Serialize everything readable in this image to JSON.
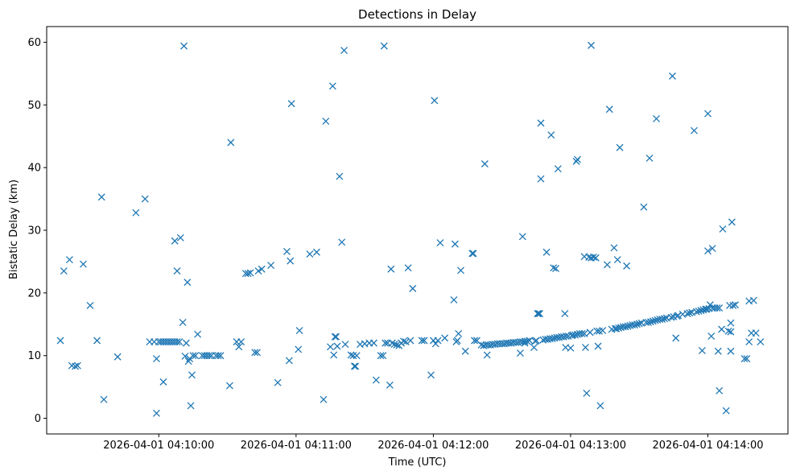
{
  "chart_data": {
    "type": "scatter",
    "title": "Detections in Delay",
    "xlabel": "Time (UTC)",
    "ylabel": "Bistatic Delay (km)",
    "marker": "x",
    "color": "#1f77b4",
    "xlim_seconds": [
      -49,
      275
    ],
    "ylim": [
      -2.5,
      62.5
    ],
    "x_ticks": [
      {
        "value": 0,
        "label": "2026-04-01 04:10:00"
      },
      {
        "value": 60,
        "label": "2026-04-01 04:11:00"
      },
      {
        "value": 120,
        "label": "2026-04-01 04:12:00"
      },
      {
        "value": 180,
        "label": "2026-04-01 04:13:00"
      },
      {
        "value": 240,
        "label": "2026-04-01 04:14:00"
      }
    ],
    "y_ticks": [
      {
        "value": 0,
        "label": "0"
      },
      {
        "value": 10,
        "label": "10"
      },
      {
        "value": 20,
        "label": "20"
      },
      {
        "value": 30,
        "label": "30"
      },
      {
        "value": 40,
        "label": "40"
      },
      {
        "value": 50,
        "label": "50"
      },
      {
        "value": 60,
        "label": "60"
      }
    ],
    "x_unit": "seconds after 2026-04-01 04:10:00 UTC",
    "series": [
      {
        "name": "detections",
        "points": [
          [
            -43,
            12.4
          ],
          [
            -41.5,
            23.5
          ],
          [
            -39,
            25.3
          ],
          [
            -38,
            8.4
          ],
          [
            -36.5,
            8.3
          ],
          [
            -35.5,
            8.4
          ],
          [
            -33,
            24.6
          ],
          [
            -30,
            18.0
          ],
          [
            -27,
            12.4
          ],
          [
            -25,
            35.3
          ],
          [
            -24,
            3.0
          ],
          [
            -18,
            9.8
          ],
          [
            -10,
            32.8
          ],
          [
            -6,
            35.0
          ],
          [
            -4,
            12.2
          ],
          [
            -2,
            12.2
          ],
          [
            -1,
            9.5
          ],
          [
            -1,
            0.8
          ],
          [
            0,
            12.2
          ],
          [
            1,
            12.2
          ],
          [
            2,
            12.2
          ],
          [
            3,
            12.2
          ],
          [
            4,
            12.2
          ],
          [
            5,
            12.2
          ],
          [
            6,
            12.2
          ],
          [
            7,
            12.2
          ],
          [
            8,
            12.2
          ],
          [
            9,
            12.2
          ],
          [
            2,
            5.8
          ],
          [
            7,
            28.3
          ],
          [
            8,
            23.5
          ],
          [
            9.5,
            28.8
          ],
          [
            10.5,
            15.3
          ],
          [
            11,
            59.4
          ],
          [
            11.5,
            9.9
          ],
          [
            12,
            12.0
          ],
          [
            12.5,
            21.7
          ],
          [
            13,
            9.1
          ],
          [
            13.5,
            9.5
          ],
          [
            14,
            2.0
          ],
          [
            14.5,
            6.9
          ],
          [
            15,
            10.0
          ],
          [
            16,
            10.0
          ],
          [
            17,
            13.4
          ],
          [
            19,
            10.0
          ],
          [
            20,
            10.0
          ],
          [
            21,
            10.0
          ],
          [
            22,
            10.0
          ],
          [
            23,
            10.0
          ],
          [
            25,
            10.0
          ],
          [
            26,
            10.0
          ],
          [
            27,
            10.0
          ],
          [
            31,
            5.2
          ],
          [
            31.5,
            44.0
          ],
          [
            34,
            12.2
          ],
          [
            35,
            11.4
          ],
          [
            36,
            12.2
          ],
          [
            38,
            23.1
          ],
          [
            39,
            23.1
          ],
          [
            40,
            23.2
          ],
          [
            42,
            10.5
          ],
          [
            43,
            10.5
          ],
          [
            43.5,
            23.5
          ],
          [
            45,
            23.8
          ],
          [
            49,
            24.4
          ],
          [
            52,
            5.7
          ],
          [
            56,
            26.6
          ],
          [
            57,
            9.2
          ],
          [
            57.5,
            25.1
          ],
          [
            58,
            50.2
          ],
          [
            61,
            11.0
          ],
          [
            61.5,
            14.0
          ],
          [
            66,
            26.2
          ],
          [
            69,
            26.5
          ],
          [
            72,
            3.0
          ],
          [
            73,
            47.4
          ],
          [
            75,
            11.4
          ],
          [
            76,
            53.0
          ],
          [
            76.5,
            10.1
          ],
          [
            77,
            13.0
          ],
          [
            77.5,
            13.0
          ],
          [
            78,
            11.5
          ],
          [
            79,
            38.6
          ],
          [
            80,
            28.1
          ],
          [
            81,
            58.7
          ],
          [
            81.5,
            11.8
          ],
          [
            84,
            10.1
          ],
          [
            85,
            10.0
          ],
          [
            85.5,
            8.3
          ],
          [
            86,
            8.3
          ],
          [
            86.5,
            10.0
          ],
          [
            88,
            11.8
          ],
          [
            90,
            11.9
          ],
          [
            92,
            12.0
          ],
          [
            94,
            12.0
          ],
          [
            95,
            6.1
          ],
          [
            97,
            10.0
          ],
          [
            98,
            10.0
          ],
          [
            98.5,
            59.4
          ],
          [
            99,
            12.0
          ],
          [
            100,
            12.0
          ],
          [
            101,
            5.3
          ],
          [
            101.5,
            23.8
          ],
          [
            102,
            12.0
          ],
          [
            103,
            11.8
          ],
          [
            104,
            11.7
          ],
          [
            105,
            11.6
          ],
          [
            106,
            12.0
          ],
          [
            107,
            12.3
          ],
          [
            108,
            12.2
          ],
          [
            109,
            24.0
          ],
          [
            110,
            12.4
          ],
          [
            111,
            20.7
          ],
          [
            115,
            12.4
          ],
          [
            116,
            12.4
          ],
          [
            120,
            12.4
          ],
          [
            121,
            11.9
          ],
          [
            122,
            12.4
          ],
          [
            119,
            6.9
          ],
          [
            120.5,
            50.7
          ],
          [
            123,
            28.0
          ],
          [
            125,
            12.8
          ],
          [
            129,
            18.9
          ],
          [
            129.5,
            27.8
          ],
          [
            130,
            12.2
          ],
          [
            130.5,
            12.4
          ],
          [
            131,
            13.5
          ],
          [
            132,
            23.6
          ],
          [
            134,
            10.7
          ],
          [
            137,
            26.3
          ],
          [
            137.5,
            26.3
          ],
          [
            138,
            12.4
          ],
          [
            139,
            12.4
          ],
          [
            141,
            11.7
          ],
          [
            142,
            11.6
          ],
          [
            142.5,
            40.6
          ],
          [
            143,
            11.7
          ],
          [
            143.5,
            10.1
          ],
          [
            144,
            11.7
          ],
          [
            145,
            11.7
          ],
          [
            146,
            11.8
          ],
          [
            147,
            11.8
          ],
          [
            148,
            11.9
          ],
          [
            149,
            11.9
          ],
          [
            150,
            11.9
          ],
          [
            151,
            11.9
          ],
          [
            152,
            12.0
          ],
          [
            153,
            12.0
          ],
          [
            154,
            12.0
          ],
          [
            155,
            12.1
          ],
          [
            156,
            12.1
          ],
          [
            157,
            12.1
          ],
          [
            158,
            12.2
          ],
          [
            159,
            12.2
          ],
          [
            160,
            12.3
          ],
          [
            161,
            12.3
          ],
          [
            162,
            12.4
          ],
          [
            158,
            10.4
          ],
          [
            159,
            29.0
          ],
          [
            160,
            12.0
          ],
          [
            164,
            11.3
          ],
          [
            164.5,
            12.3
          ],
          [
            165,
            12.4
          ],
          [
            165.5,
            16.7
          ],
          [
            166,
            16.7
          ],
          [
            166.5,
            16.7
          ],
          [
            167,
            47.1
          ],
          [
            167,
            38.2
          ],
          [
            168,
            12.5
          ],
          [
            169,
            12.6
          ],
          [
            169.5,
            26.5
          ],
          [
            170,
            12.6
          ],
          [
            171,
            12.7
          ],
          [
            171.5,
            45.2
          ],
          [
            172,
            12.7
          ],
          [
            172.5,
            24.0
          ],
          [
            173,
            12.8
          ],
          [
            173.5,
            23.9
          ],
          [
            174,
            12.9
          ],
          [
            174.5,
            39.8
          ],
          [
            175,
            12.9
          ],
          [
            176,
            13.0
          ],
          [
            177,
            13.0
          ],
          [
            177.5,
            16.7
          ],
          [
            177.8,
            11.3
          ],
          [
            178,
            13.1
          ],
          [
            179,
            13.1
          ],
          [
            180,
            11.2
          ],
          [
            180.5,
            13.2
          ],
          [
            181,
            13.3
          ],
          [
            182,
            13.3
          ],
          [
            182.5,
            41.0
          ],
          [
            183,
            41.3
          ],
          [
            183,
            13.4
          ],
          [
            184,
            13.5
          ],
          [
            185,
            13.5
          ],
          [
            186,
            25.8
          ],
          [
            186,
            13.5
          ],
          [
            186.5,
            11.3
          ],
          [
            187,
            4.0
          ],
          [
            188,
            25.7
          ],
          [
            188.5,
            13.7
          ],
          [
            189,
            59.5
          ],
          [
            189,
            25.6
          ],
          [
            190,
            25.7
          ],
          [
            191,
            25.6
          ],
          [
            191.5,
            13.9
          ],
          [
            192,
            11.5
          ],
          [
            192.5,
            13.9
          ],
          [
            193,
            2.0
          ],
          [
            194,
            14.0
          ],
          [
            196,
            24.5
          ],
          [
            197,
            49.3
          ],
          [
            198,
            14.2
          ],
          [
            199,
            27.2
          ],
          [
            199.5,
            14.3
          ],
          [
            200,
            14.3
          ],
          [
            200.5,
            25.3
          ],
          [
            201,
            14.4
          ],
          [
            201.5,
            43.2
          ],
          [
            202,
            14.5
          ],
          [
            203,
            14.6
          ],
          [
            204,
            14.6
          ],
          [
            204.5,
            24.3
          ],
          [
            205,
            14.7
          ],
          [
            206,
            14.8
          ],
          [
            207,
            14.9
          ],
          [
            208,
            14.9
          ],
          [
            209,
            15.0
          ],
          [
            210,
            15.1
          ],
          [
            211,
            15.2
          ],
          [
            212,
            33.7
          ],
          [
            213,
            15.3
          ],
          [
            214,
            15.3
          ],
          [
            214.5,
            41.5
          ],
          [
            215,
            15.4
          ],
          [
            216,
            15.5
          ],
          [
            217,
            15.6
          ],
          [
            217.5,
            47.8
          ],
          [
            218,
            15.7
          ],
          [
            219,
            15.8
          ],
          [
            220,
            15.8
          ],
          [
            221,
            15.9
          ],
          [
            222,
            16.0
          ],
          [
            224,
            16.1
          ],
          [
            224.5,
            54.6
          ],
          [
            225,
            16.2
          ],
          [
            226,
            12.8
          ],
          [
            226.5,
            16.3
          ],
          [
            227,
            16.4
          ],
          [
            229,
            16.6
          ],
          [
            231,
            16.7
          ],
          [
            232,
            16.8
          ],
          [
            233,
            16.9
          ],
          [
            234,
            45.9
          ],
          [
            235,
            17.0
          ],
          [
            236,
            17.1
          ],
          [
            237,
            17.2
          ],
          [
            237.5,
            10.8
          ],
          [
            238,
            17.3
          ],
          [
            239,
            17.4
          ],
          [
            239.5,
            17.4
          ],
          [
            240,
            48.6
          ],
          [
            240,
            26.7
          ],
          [
            240.5,
            17.5
          ],
          [
            241,
            18.1
          ],
          [
            241.5,
            13.1
          ],
          [
            242,
            27.1
          ],
          [
            242,
            17.6
          ],
          [
            243,
            17.6
          ],
          [
            244,
            17.6
          ],
          [
            244.5,
            10.7
          ],
          [
            245,
            17.6
          ],
          [
            245,
            4.4
          ],
          [
            246,
            14.2
          ],
          [
            246.5,
            30.2
          ],
          [
            248,
            1.2
          ],
          [
            249,
            13.9
          ],
          [
            249.5,
            18.0
          ],
          [
            250,
            13.8
          ],
          [
            250,
            15.2
          ],
          [
            250.5,
            31.3
          ],
          [
            250,
            10.7
          ],
          [
            251,
            18.0
          ],
          [
            252,
            18.1
          ],
          [
            256,
            9.5
          ],
          [
            257,
            9.5
          ],
          [
            258,
            12.2
          ],
          [
            258,
            18.7
          ],
          [
            259,
            13.6
          ],
          [
            260,
            18.8
          ],
          [
            261,
            13.6
          ],
          [
            263,
            12.2
          ]
        ]
      }
    ]
  }
}
